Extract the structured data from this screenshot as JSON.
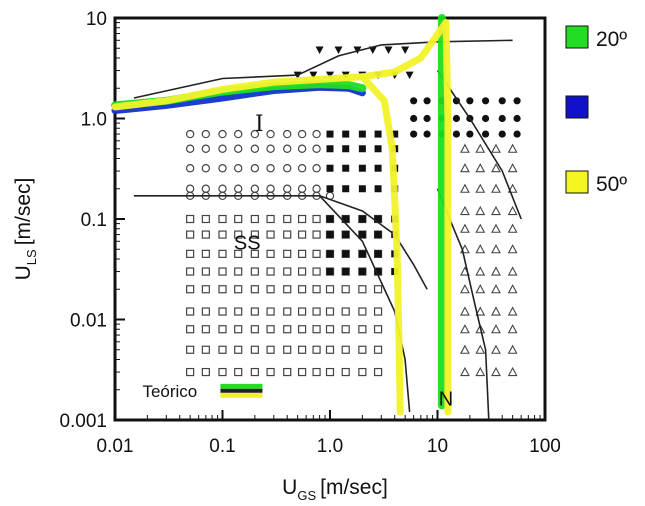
{
  "chart_data": {
    "type": "scatter",
    "xlabel_main": "U",
    "xlabel_sub": "GS",
    "xlabel_unit": "[m/sec]",
    "ylabel_main": "U",
    "ylabel_sub": "LS",
    "ylabel_unit": "[m/sec]",
    "xscale": "log",
    "yscale": "log",
    "xlim": [
      0.01,
      100
    ],
    "ylim": [
      0.001,
      10
    ],
    "xticks": [
      {
        "value": 0.01,
        "label": "0.01"
      },
      {
        "value": 0.1,
        "label": "0.1"
      },
      {
        "value": 1.0,
        "label": "1.0"
      },
      {
        "value": 10,
        "label": "10"
      },
      {
        "value": 100,
        "label": "100"
      }
    ],
    "yticks": [
      {
        "value": 0.001,
        "label": "0.001"
      },
      {
        "value": 0.01,
        "label": "0.01"
      },
      {
        "value": 0.1,
        "label": "0.1"
      },
      {
        "value": 1.0,
        "label": "1.0"
      },
      {
        "value": 10,
        "label": "10"
      }
    ],
    "region_labels": [
      {
        "text": "I",
        "x": 0.22,
        "y": 0.75
      },
      {
        "text": "SS",
        "x": 0.17,
        "y": 0.05
      },
      {
        "text": "N",
        "x": 12,
        "y": 0.0014
      }
    ],
    "inset_label": "Teórico",
    "legend": [
      {
        "label": "20º",
        "color": "#22dd22"
      },
      {
        "label": "",
        "color": "#1111cc"
      },
      {
        "label": "50º",
        "color": "#f5f520"
      }
    ],
    "colors": {
      "green": "#22dd22",
      "blue": "#1133cc",
      "yellow": "#f2f22a",
      "black": "#222222"
    },
    "series": [
      {
        "key": "blue",
        "points": [
          [
            0.01,
            1.2
          ],
          [
            0.03,
            1.35
          ],
          [
            0.1,
            1.6
          ],
          [
            0.3,
            1.9
          ],
          [
            0.8,
            2.05
          ],
          [
            1.5,
            2.0
          ],
          [
            2.0,
            1.8
          ]
        ]
      },
      {
        "key": "green",
        "points": [
          [
            0.01,
            1.35
          ],
          [
            0.03,
            1.5
          ],
          [
            0.1,
            1.85
          ],
          [
            0.3,
            2.1
          ],
          [
            0.8,
            2.2
          ],
          [
            1.5,
            2.15
          ],
          [
            2.0,
            2.0
          ]
        ]
      },
      {
        "key": "green",
        "points": [
          [
            11,
            0.0014
          ],
          [
            11,
            0.01
          ],
          [
            11,
            0.1
          ],
          [
            11,
            1
          ],
          [
            11,
            10
          ]
        ]
      },
      {
        "key": "yellow",
        "points": [
          [
            0.01,
            1.3
          ],
          [
            0.03,
            1.5
          ],
          [
            0.1,
            1.95
          ],
          [
            0.3,
            2.3
          ],
          [
            0.8,
            2.45
          ],
          [
            2.0,
            2.6
          ],
          [
            4.0,
            2.9
          ],
          [
            7.0,
            4.0
          ],
          [
            12,
            9.0
          ]
        ]
      },
      {
        "key": "yellow",
        "points": [
          [
            2.0,
            2.6
          ],
          [
            3.2,
            1.5
          ],
          [
            3.8,
            0.5
          ],
          [
            4.2,
            0.05
          ],
          [
            4.4,
            0.005
          ],
          [
            4.5,
            0.0012
          ]
        ]
      },
      {
        "key": "yellow",
        "points": [
          [
            12,
            9.0
          ],
          [
            12.5,
            1.0
          ],
          [
            12.5,
            0.01
          ],
          [
            12.5,
            0.0012
          ]
        ]
      }
    ],
    "boundaries": [
      {
        "points": [
          [
            0.015,
            1.6
          ],
          [
            0.1,
            2.5
          ],
          [
            0.5,
            2.7
          ],
          [
            1.2,
            4.2
          ],
          [
            3.0,
            5.4
          ],
          [
            10,
            5.8
          ],
          [
            50,
            6.0
          ]
        ]
      },
      {
        "points": [
          [
            0.015,
            0.17
          ],
          [
            0.3,
            0.17
          ],
          [
            0.8,
            0.17
          ],
          [
            2.0,
            0.12
          ],
          [
            4.0,
            0.07
          ],
          [
            6.0,
            0.035
          ],
          [
            8.0,
            0.02
          ]
        ]
      },
      {
        "points": [
          [
            0.8,
            0.17
          ],
          [
            2.0,
            0.06
          ],
          [
            4.0,
            0.012
          ],
          [
            5.0,
            0.004
          ],
          [
            5.5,
            0.0012
          ]
        ]
      },
      {
        "points": [
          [
            10,
            0.2
          ],
          [
            13,
            0.1
          ],
          [
            17,
            0.05
          ],
          [
            22,
            0.015
          ],
          [
            28,
            0.005
          ],
          [
            30,
            0.001
          ]
        ]
      },
      {
        "points": [
          [
            10,
            3.0
          ],
          [
            20,
            1.0
          ],
          [
            40,
            0.3
          ],
          [
            60,
            0.1
          ]
        ]
      }
    ],
    "data_groups": {
      "open_circle": {
        "xs": [
          0.05,
          0.07,
          0.1,
          0.14,
          0.2,
          0.28,
          0.4,
          0.55,
          0.75
        ],
        "ys": [
          0.7,
          0.5,
          0.32,
          0.2
        ]
      },
      "open_circle_line": {
        "xs": [
          0.05,
          0.07,
          0.1,
          0.14,
          0.2,
          0.28,
          0.4,
          0.55,
          0.75,
          1.0
        ],
        "ys": [
          0.17
        ]
      },
      "open_square": {
        "xs": [
          0.05,
          0.07,
          0.1,
          0.14,
          0.2,
          0.28,
          0.4,
          0.55,
          0.75,
          1.0,
          1.4,
          2.0,
          2.8
        ],
        "ys": [
          0.1,
          0.07,
          0.045,
          0.03,
          0.02,
          0.012,
          0.008,
          0.005,
          0.003
        ]
      },
      "filled_square": {
        "xs": [
          1.0,
          1.4,
          2.0,
          2.8,
          4.0
        ],
        "ys": [
          0.7,
          0.5,
          0.32,
          0.2,
          0.1,
          0.07,
          0.045,
          0.03
        ]
      },
      "filled_circle": {
        "xs": [
          6,
          8,
          11,
          15,
          20,
          28,
          40,
          55
        ],
        "ys": [
          1.5,
          1.0,
          0.7
        ]
      },
      "open_triangle": {
        "xs": [
          18,
          25,
          35,
          50
        ],
        "ys": [
          0.5,
          0.32,
          0.2,
          0.12,
          0.08,
          0.05,
          0.03,
          0.02,
          0.012,
          0.008,
          0.005,
          0.003
        ]
      },
      "filled_triangle_down": {
        "xs": [
          0.5,
          0.7,
          1.0,
          1.4,
          2.0,
          2.8,
          4.0,
          5.5
        ],
        "ys": [
          2.7
        ]
      },
      "filled_triangle_top": {
        "xs": [
          0.8,
          1.2,
          1.8,
          2.5,
          3.5,
          5.0
        ],
        "ys": [
          4.8
        ]
      }
    }
  }
}
